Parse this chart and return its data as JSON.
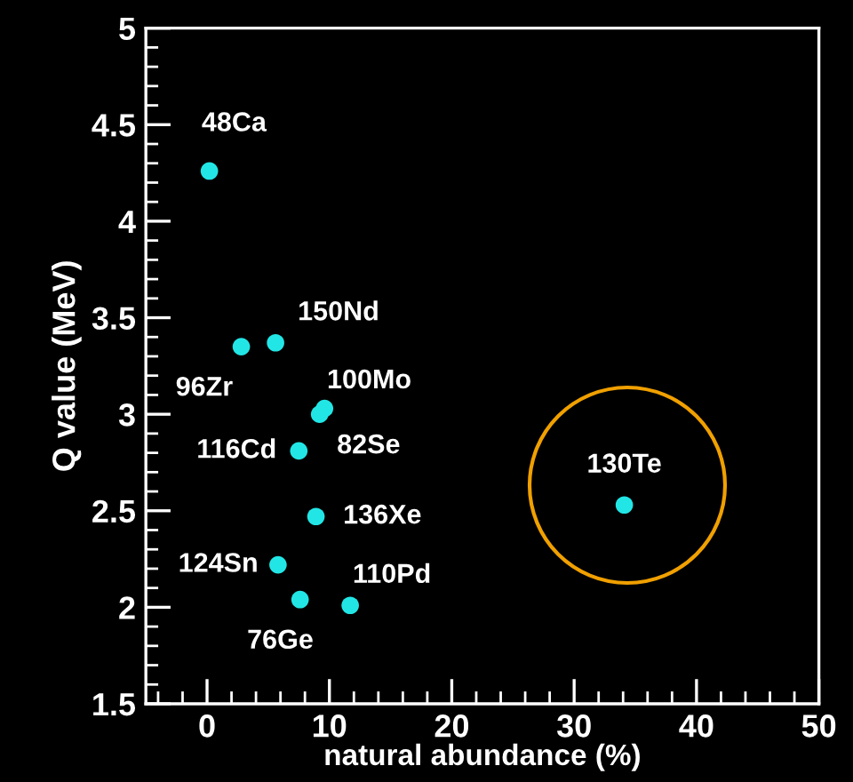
{
  "chart_data": {
    "type": "scatter",
    "xlabel": "natural abundance (%)",
    "ylabel": "Q value (MeV)",
    "x": [
      0.19,
      2.8,
      5.6,
      9.6,
      9.2,
      7.5,
      8.9,
      5.8,
      7.6,
      11.7,
      34.1
    ],
    "values": [
      4.26,
      3.35,
      3.37,
      3.03,
      3.0,
      2.81,
      2.47,
      2.22,
      2.04,
      2.01,
      2.53
    ],
    "color": "#22e6e6",
    "marker": "circle",
    "xlim": [
      -5,
      50
    ],
    "xticks": [
      0,
      10,
      20,
      30,
      40,
      50
    ],
    "ylim": [
      1.5,
      5
    ],
    "yticks": [
      1.5,
      2,
      2.5,
      3,
      3.5,
      4,
      4.5,
      5
    ],
    "grid": false,
    "annotations": [
      {
        "text": "48Ca",
        "x": 0.19,
        "y": 4.26
      },
      {
        "text": "96Zr",
        "x": 2.8,
        "y": 3.35
      },
      {
        "text": "150Nd",
        "x": 5.6,
        "y": 3.37
      },
      {
        "text": "100Mo",
        "x": 9.6,
        "y": 3.03
      },
      {
        "text": "82Se",
        "x": 9.2,
        "y": 3.0
      },
      {
        "text": "116Cd",
        "x": 7.5,
        "y": 2.81
      },
      {
        "text": "136Xe",
        "x": 8.9,
        "y": 2.47
      },
      {
        "text": "124Sn",
        "x": 5.8,
        "y": 2.22
      },
      {
        "text": "76Ge",
        "x": 7.6,
        "y": 2.04
      },
      {
        "text": "110Pd",
        "x": 11.7,
        "y": 2.01
      },
      {
        "text": "130Te",
        "x": 34.1,
        "y": 2.53
      }
    ]
  }
}
